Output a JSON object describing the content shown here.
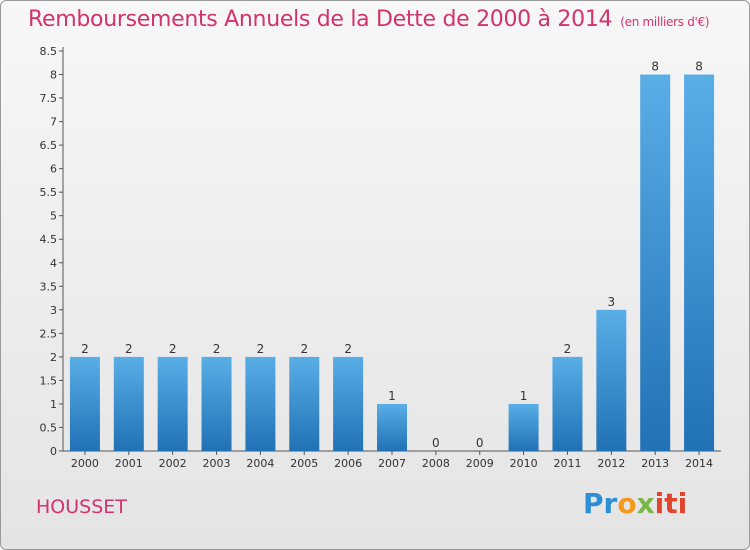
{
  "header": {
    "title": "Remboursements Annuels de la Dette de 2000 à 2014",
    "unit_note": "(en milliers d'€)"
  },
  "footer": {
    "city": "HOUSSET",
    "brand": {
      "part1": "Pr",
      "part2": "o",
      "part3": "x",
      "part4": "iti"
    }
  },
  "colors": {
    "title": "#d2336e",
    "bar_top": "#5aaee6",
    "bar_bottom": "#2171b5"
  },
  "chart_data": {
    "type": "bar",
    "title": "Remboursements Annuels de la Dette de 2000 à 2014",
    "xlabel": "",
    "ylabel": "",
    "categories": [
      "2000",
      "2001",
      "2002",
      "2003",
      "2004",
      "2005",
      "2006",
      "2007",
      "2008",
      "2009",
      "2010",
      "2011",
      "2012",
      "2013",
      "2014"
    ],
    "values": [
      2,
      2,
      2,
      2,
      2,
      2,
      2,
      1,
      0,
      0,
      1,
      2,
      3,
      8,
      8
    ],
    "data_labels": [
      "2",
      "2",
      "2",
      "2",
      "2",
      "2",
      "2",
      "1",
      "0",
      "0",
      "1",
      "2",
      "3",
      "8",
      "8"
    ],
    "ylim": [
      0,
      8.5
    ],
    "y_ticks": [
      0,
      0.5,
      1,
      1.5,
      2,
      2.5,
      3,
      3.5,
      4,
      4.5,
      5,
      5.5,
      6,
      6.5,
      7,
      7.5,
      8,
      8.5
    ],
    "y_tick_labels": [
      "0",
      "0.5",
      "1",
      "1.5",
      "2",
      "2.5",
      "3",
      "3.5",
      "4",
      "4.5",
      "5",
      "5.5",
      "6",
      "6.5",
      "7",
      "7.5",
      "8",
      "8.5"
    ],
    "grid": false,
    "legend": "none"
  }
}
